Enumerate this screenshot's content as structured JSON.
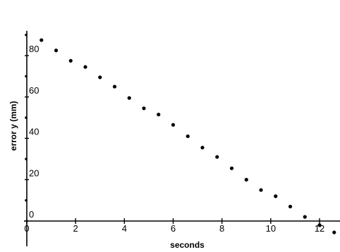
{
  "chart_data": {
    "type": "scatter",
    "title": "",
    "xlabel": "seconds",
    "ylabel": "error y (mm)",
    "xlim": [
      0,
      12.9
    ],
    "ylim": [
      -9.5,
      92
    ],
    "x_ticks": [
      0,
      2,
      4,
      6,
      8,
      10,
      12
    ],
    "x_tick_labels": [
      "0",
      "2",
      "4",
      "6",
      "8",
      "10",
      "12"
    ],
    "y_ticks": [
      0,
      20,
      40,
      60,
      80
    ],
    "y_tick_labels": [
      "0",
      "20",
      "40",
      "60",
      "80"
    ],
    "y_minor_ticks": [
      10,
      30,
      50,
      70,
      90
    ],
    "grid": false,
    "legend": "none",
    "point_color": "#000000",
    "series": [
      {
        "x": [
          0.6,
          1.2,
          1.8,
          2.4,
          3.0,
          3.6,
          4.2,
          4.8,
          5.4,
          6.0,
          6.6,
          7.2,
          7.8,
          8.4,
          9.0,
          9.6,
          10.2,
          10.8,
          11.4,
          12.0,
          12.6
        ],
        "y": [
          87.5,
          82.5,
          77.5,
          74.5,
          69.5,
          65.0,
          59.5,
          54.5,
          51.5,
          46.5,
          41.0,
          35.5,
          31.0,
          25.5,
          20.0,
          15.0,
          12.0,
          7.0,
          2.0,
          -2.0,
          -5.5
        ]
      }
    ]
  }
}
